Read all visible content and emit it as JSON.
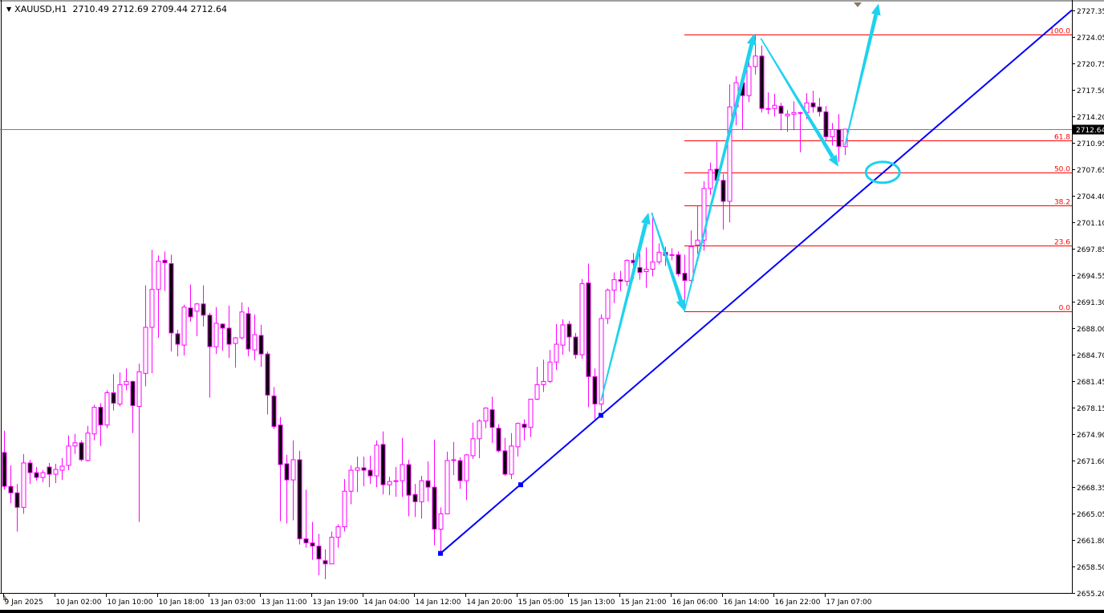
{
  "header": {
    "menu_icon": "triangle-down-icon",
    "symbol": "XAUUSD,H1",
    "ohlc": "2710.49 2712.69 2709.44 2712.64"
  },
  "colors": {
    "candle_outline": "#ff00ff",
    "bear_fill": "#000000",
    "bull_fill": "#ffffff",
    "fib": "#ff0000",
    "trendline": "#0000ff",
    "annotation": "#1ed2ee",
    "price_line": "#8c7864"
  },
  "chart_data": {
    "type": "candlestick",
    "symbol": "XAUUSD",
    "timeframe": "H1",
    "ylim": [
      2655.2,
      2727.35
    ],
    "y_ticks": [
      "2727.35",
      "2724.05",
      "2720.75",
      "2717.50",
      "2714.20",
      "2710.95",
      "2707.65",
      "2704.40",
      "2701.10",
      "2697.85",
      "2694.55",
      "2691.30",
      "2688.00",
      "2684.70",
      "2681.45",
      "2678.15",
      "2674.90",
      "2671.60",
      "2668.35",
      "2665.05",
      "2661.80",
      "2658.50",
      "2655.20"
    ],
    "x_ticks": [
      {
        "bar": 0,
        "label": "9 Jan 2025"
      },
      {
        "bar": 8,
        "label": "10 Jan 02:00"
      },
      {
        "bar": 16,
        "label": "10 Jan 10:00"
      },
      {
        "bar": 24,
        "label": "10 Jan 18:00"
      },
      {
        "bar": 32,
        "label": "13 Jan 03:00"
      },
      {
        "bar": 40,
        "label": "13 Jan 11:00"
      },
      {
        "bar": 48,
        "label": "13 Jan 19:00"
      },
      {
        "bar": 56,
        "label": "14 Jan 04:00"
      },
      {
        "bar": 64,
        "label": "14 Jan 12:00"
      },
      {
        "bar": 72,
        "label": "14 Jan 20:00"
      },
      {
        "bar": 80,
        "label": "15 Jan 05:00"
      },
      {
        "bar": 88,
        "label": "15 Jan 13:00"
      },
      {
        "bar": 96,
        "label": "15 Jan 21:00"
      },
      {
        "bar": 104,
        "label": "16 Jan 06:00"
      },
      {
        "bar": 112,
        "label": "16 Jan 14:00"
      },
      {
        "bar": 120,
        "label": "16 Jan 22:00"
      },
      {
        "bar": 128,
        "label": "17 Jan 07:00"
      }
    ],
    "current_price": "2712.64",
    "candles_ohlc": [
      [
        2672.6,
        2675.3,
        2668.0,
        2668.4
      ],
      [
        2668.4,
        2671.0,
        2666.3,
        2667.6
      ],
      [
        2667.6,
        2668.7,
        2662.8,
        2665.8
      ],
      [
        2665.8,
        2672.4,
        2665.0,
        2671.3
      ],
      [
        2671.3,
        2671.7,
        2668.7,
        2670.1
      ],
      [
        2670.1,
        2670.8,
        2669.1,
        2669.5
      ],
      [
        2669.5,
        2670.4,
        2668.9,
        2670.1
      ],
      [
        2670.8,
        2671.3,
        2668.3,
        2669.9
      ],
      [
        2669.9,
        2671.2,
        2668.8,
        2670.5
      ],
      [
        2670.4,
        2671.9,
        2669.2,
        2670.9
      ],
      [
        2671.0,
        2674.7,
        2670.4,
        2673.4
      ],
      [
        2673.4,
        2674.9,
        2672.4,
        2673.8
      ],
      [
        2673.8,
        2674.1,
        2671.5,
        2671.7
      ],
      [
        2671.6,
        2675.9,
        2671.5,
        2675.0
      ],
      [
        2674.9,
        2678.5,
        2674.1,
        2678.2
      ],
      [
        2678.2,
        2678.7,
        2673.4,
        2676.0
      ],
      [
        2676.0,
        2680.3,
        2675.6,
        2680.0
      ],
      [
        2680.0,
        2682.3,
        2677.8,
        2678.7
      ],
      [
        2678.6,
        2682.5,
        2678.3,
        2681.0
      ],
      [
        2681.0,
        2683.0,
        2680.3,
        2681.4
      ],
      [
        2681.4,
        2681.5,
        2675.0,
        2678.4
      ],
      [
        2678.3,
        2683.6,
        2664.0,
        2682.6
      ],
      [
        2682.4,
        2693.3,
        2680.8,
        2688.1
      ],
      [
        2688.1,
        2697.7,
        2682.4,
        2692.8
      ],
      [
        2692.8,
        2697.0,
        2686.8,
        2696.3
      ],
      [
        2696.4,
        2697.5,
        2692.6,
        2696.1
      ],
      [
        2696.0,
        2697.1,
        2685.1,
        2687.4
      ],
      [
        2687.3,
        2687.8,
        2684.5,
        2686.0
      ],
      [
        2685.9,
        2690.9,
        2684.6,
        2690.6
      ],
      [
        2690.5,
        2693.4,
        2688.8,
        2689.4
      ],
      [
        2690.1,
        2691.1,
        2687.0,
        2691.0
      ],
      [
        2691.0,
        2693.3,
        2688.2,
        2689.6
      ],
      [
        2689.6,
        2689.9,
        2679.4,
        2685.7
      ],
      [
        2685.7,
        2690.6,
        2684.8,
        2688.6
      ],
      [
        2688.5,
        2688.6,
        2685.2,
        2688.0
      ],
      [
        2688.0,
        2690.8,
        2684.3,
        2686.0
      ],
      [
        2686.1,
        2686.9,
        2683.1,
        2686.8
      ],
      [
        2686.8,
        2691.2,
        2686.6,
        2690.0
      ],
      [
        2689.8,
        2690.6,
        2684.5,
        2685.4
      ],
      [
        2685.3,
        2689.7,
        2684.0,
        2687.2
      ],
      [
        2687.1,
        2688.4,
        2683.2,
        2684.8
      ],
      [
        2684.8,
        2685.1,
        2677.3,
        2679.7
      ],
      [
        2679.6,
        2680.7,
        2675.5,
        2675.8
      ],
      [
        2676.0,
        2677.0,
        2664.1,
        2671.1
      ],
      [
        2671.2,
        2672.3,
        2663.8,
        2669.2
      ],
      [
        2669.2,
        2674.1,
        2664.2,
        2671.7
      ],
      [
        2671.7,
        2672.8,
        2661.2,
        2661.9
      ],
      [
        2661.9,
        2668.0,
        2660.8,
        2661.4
      ],
      [
        2661.4,
        2664.0,
        2659.3,
        2661.0
      ],
      [
        2661.0,
        2662.5,
        2657.4,
        2659.4
      ],
      [
        2659.2,
        2660.6,
        2656.9,
        2658.8
      ],
      [
        2658.8,
        2662.8,
        2658.8,
        2662.1
      ],
      [
        2662.1,
        2663.7,
        2660.8,
        2663.4
      ],
      [
        2663.4,
        2669.3,
        2662.8,
        2667.8
      ],
      [
        2667.8,
        2671.0,
        2666.2,
        2670.4
      ],
      [
        2670.4,
        2672.1,
        2667.7,
        2670.7
      ],
      [
        2670.7,
        2672.1,
        2668.4,
        2670.4
      ],
      [
        2670.4,
        2672.2,
        2668.7,
        2669.7
      ],
      [
        2669.7,
        2674.1,
        2668.3,
        2673.5
      ],
      [
        2673.6,
        2675.2,
        2667.4,
        2668.6
      ],
      [
        2668.6,
        2669.6,
        2667.3,
        2669.0
      ],
      [
        2669.0,
        2670.8,
        2667.1,
        2669.1
      ],
      [
        2669.1,
        2674.4,
        2667.1,
        2671.1
      ],
      [
        2671.1,
        2671.7,
        2664.7,
        2667.3
      ],
      [
        2667.4,
        2668.7,
        2664.6,
        2666.5
      ],
      [
        2666.5,
        2669.7,
        2664.4,
        2669.1
      ],
      [
        2669.1,
        2671.5,
        2666.5,
        2668.3
      ],
      [
        2668.3,
        2674.2,
        2661.1,
        2663.1
      ],
      [
        2663.1,
        2665.8,
        2660.0,
        2665.0
      ],
      [
        2665.0,
        2672.7,
        2665.0,
        2671.6
      ],
      [
        2671.6,
        2673.9,
        2669.8,
        2671.7
      ],
      [
        2671.6,
        2672.0,
        2668.1,
        2669.1
      ],
      [
        2669.1,
        2672.4,
        2666.7,
        2672.3
      ],
      [
        2672.2,
        2676.3,
        2671.8,
        2674.3
      ],
      [
        2674.3,
        2676.7,
        2671.9,
        2676.5
      ],
      [
        2676.5,
        2678.2,
        2675.6,
        2678.1
      ],
      [
        2677.9,
        2679.5,
        2673.8,
        2675.7
      ],
      [
        2675.6,
        2676.1,
        2672.6,
        2672.8
      ],
      [
        2672.8,
        2674.4,
        2669.7,
        2669.9
      ],
      [
        2669.9,
        2675.0,
        2669.3,
        2673.4
      ],
      [
        2673.3,
        2676.3,
        2672.1,
        2676.2
      ],
      [
        2676.1,
        2676.7,
        2674.1,
        2675.7
      ],
      [
        2675.7,
        2679.2,
        2674.5,
        2679.2
      ],
      [
        2679.2,
        2683.2,
        2679.1,
        2681.0
      ],
      [
        2681.0,
        2684.1,
        2680.1,
        2681.4
      ],
      [
        2681.4,
        2685.3,
        2681.2,
        2683.8
      ],
      [
        2683.8,
        2688.5,
        2682.8,
        2686.0
      ],
      [
        2685.9,
        2689.1,
        2684.7,
        2688.4
      ],
      [
        2688.5,
        2688.9,
        2685.1,
        2686.9
      ],
      [
        2686.9,
        2687.4,
        2684.2,
        2684.7
      ],
      [
        2684.7,
        2694.1,
        2684.2,
        2693.5
      ],
      [
        2693.6,
        2696.0,
        2678.2,
        2682.0
      ],
      [
        2682.0,
        2683.0,
        2676.7,
        2678.6
      ],
      [
        2678.6,
        2689.7,
        2677.7,
        2689.2
      ],
      [
        2689.2,
        2692.9,
        2688.5,
        2692.7
      ],
      [
        2692.7,
        2694.9,
        2691.1,
        2694.0
      ],
      [
        2694.0,
        2695.1,
        2692.6,
        2693.8
      ],
      [
        2693.8,
        2696.5,
        2693.2,
        2696.4
      ],
      [
        2696.4,
        2697.3,
        2694.1,
        2696.1
      ],
      [
        2695.5,
        2697.3,
        2694.0,
        2694.9
      ],
      [
        2695.0,
        2698.0,
        2693.0,
        2695.3
      ],
      [
        2695.3,
        2702.2,
        2694.4,
        2696.2
      ],
      [
        2696.2,
        2698.5,
        2695.9,
        2697.4
      ],
      [
        2697.4,
        2698.1,
        2695.7,
        2697.0
      ],
      [
        2697.1,
        2697.9,
        2696.4,
        2697.0
      ],
      [
        2697.1,
        2697.5,
        2694.4,
        2694.7
      ],
      [
        2694.8,
        2697.1,
        2690.1,
        2693.9
      ],
      [
        2693.9,
        2700.1,
        2693.1,
        2698.1
      ],
      [
        2698.3,
        2703.1,
        2697.2,
        2698.9
      ],
      [
        2698.9,
        2706.2,
        2697.6,
        2705.3
      ],
      [
        2705.3,
        2708.5,
        2704.5,
        2707.6
      ],
      [
        2707.7,
        2711.1,
        2706.1,
        2706.3
      ],
      [
        2706.3,
        2707.1,
        2700.2,
        2703.7
      ],
      [
        2703.7,
        2718.2,
        2701.1,
        2715.4
      ],
      [
        2715.4,
        2719.2,
        2713.1,
        2718.4
      ],
      [
        2718.4,
        2719.5,
        2712.6,
        2716.8
      ],
      [
        2716.8,
        2721.4,
        2716.0,
        2720.4
      ],
      [
        2720.4,
        2724.4,
        2719.4,
        2721.7
      ],
      [
        2721.7,
        2723.0,
        2714.7,
        2715.2
      ],
      [
        2715.2,
        2717.2,
        2714.5,
        2715.1
      ],
      [
        2715.2,
        2717.0,
        2714.2,
        2715.6
      ],
      [
        2715.5,
        2715.9,
        2712.5,
        2714.6
      ],
      [
        2714.3,
        2715.0,
        2712.3,
        2714.5
      ],
      [
        2714.5,
        2716.1,
        2712.5,
        2714.7
      ],
      [
        2714.7,
        2714.8,
        2709.8,
        2714.7
      ],
      [
        2714.7,
        2717.1,
        2713.9,
        2715.9
      ],
      [
        2715.9,
        2717.4,
        2714.7,
        2715.4
      ],
      [
        2715.4,
        2716.5,
        2714.2,
        2714.8
      ],
      [
        2714.8,
        2715.5,
        2711.2,
        2711.7
      ],
      [
        2711.7,
        2713.4,
        2710.6,
        2712.6
      ],
      [
        2712.6,
        2714.5,
        2708.6,
        2710.5
      ],
      [
        2710.49,
        2712.69,
        2709.44,
        2712.64
      ]
    ],
    "fibonacci": {
      "start_bar": 106,
      "low": 2690.1,
      "high": 2724.4,
      "levels": [
        {
          "ratio": 1.0,
          "label": "100.0"
        },
        {
          "ratio": 0.618,
          "label": "61.8"
        },
        {
          "ratio": 0.5,
          "label": "50.0"
        },
        {
          "ratio": 0.382,
          "label": "38.2"
        },
        {
          "ratio": 0.236,
          "label": "23.6"
        },
        {
          "ratio": 0.0,
          "label": "0.0"
        }
      ]
    },
    "trendline": {
      "anchors": [
        {
          "bar": 68,
          "price": 2660.1
        },
        {
          "bar": 80.5,
          "price": 2668.6
        },
        {
          "bar": 93,
          "price": 2677.2
        }
      ],
      "extends": "right"
    },
    "annotation_arrows": [
      {
        "from": {
          "bar": 93,
          "price": 2679.0
        },
        "to": {
          "bar": 100.4,
          "price": 2702.3
        }
      },
      {
        "from": {
          "bar": 100.9,
          "price": 2702.3
        },
        "to": {
          "bar": 106,
          "price": 2690.1
        }
      },
      {
        "from": {
          "bar": 106,
          "price": 2690.1
        },
        "to": {
          "bar": 116.9,
          "price": 2724.5
        }
      },
      {
        "from": {
          "bar": 117.9,
          "price": 2723.9
        },
        "to": {
          "bar": 130,
          "price": 2708.0
        }
      },
      {
        "from": {
          "bar": 131,
          "price": 2710.6
        },
        "to": {
          "bar": 136.25,
          "price": 2728.2
        }
      }
    ],
    "annotation_ellipse": {
      "bar": 136.9,
      "price": 2707.3
    }
  }
}
